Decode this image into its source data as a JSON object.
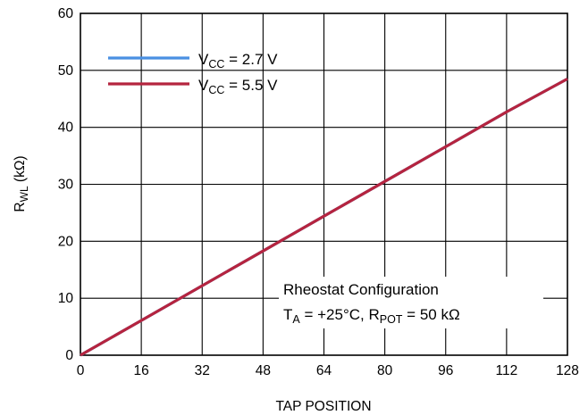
{
  "chart_data": {
    "type": "line",
    "xlabel": "TAP POSITION",
    "ylabel": {
      "main": "R",
      "sub": "WL",
      "unit": " (kΩ)"
    },
    "xlim": [
      0,
      128
    ],
    "ylim": [
      0,
      60
    ],
    "x_ticks": [
      0,
      16,
      32,
      48,
      64,
      80,
      96,
      112,
      128
    ],
    "y_ticks": [
      0,
      10,
      20,
      30,
      40,
      50,
      60
    ],
    "grid": true,
    "legend_position": "top-left",
    "series": [
      {
        "label": {
          "main": "V",
          "sub": "CC",
          "rest": " = 2.7 V"
        },
        "color": "#4a90e2",
        "x": [
          0,
          16,
          32,
          48,
          64,
          80,
          96,
          112,
          128
        ],
        "y": [
          0,
          6.1,
          12.2,
          18.3,
          24.4,
          30.5,
          36.6,
          42.7,
          48.5
        ]
      },
      {
        "label": {
          "main": "V",
          "sub": "CC",
          "rest": " = 5.5 V"
        },
        "color": "#b5243f",
        "x": [
          0,
          16,
          32,
          48,
          64,
          80,
          96,
          112,
          128
        ],
        "y": [
          0,
          6.1,
          12.2,
          18.3,
          24.4,
          30.5,
          36.6,
          42.7,
          48.5
        ]
      }
    ],
    "annotation": {
      "line1": "Rheostat Configuration",
      "line2_ta": "T",
      "line2_ta_sub": "A",
      "line2_mid": " = +25°C, R",
      "line2_rpot_sub": "POT",
      "line2_end": " = 50 kΩ"
    }
  }
}
